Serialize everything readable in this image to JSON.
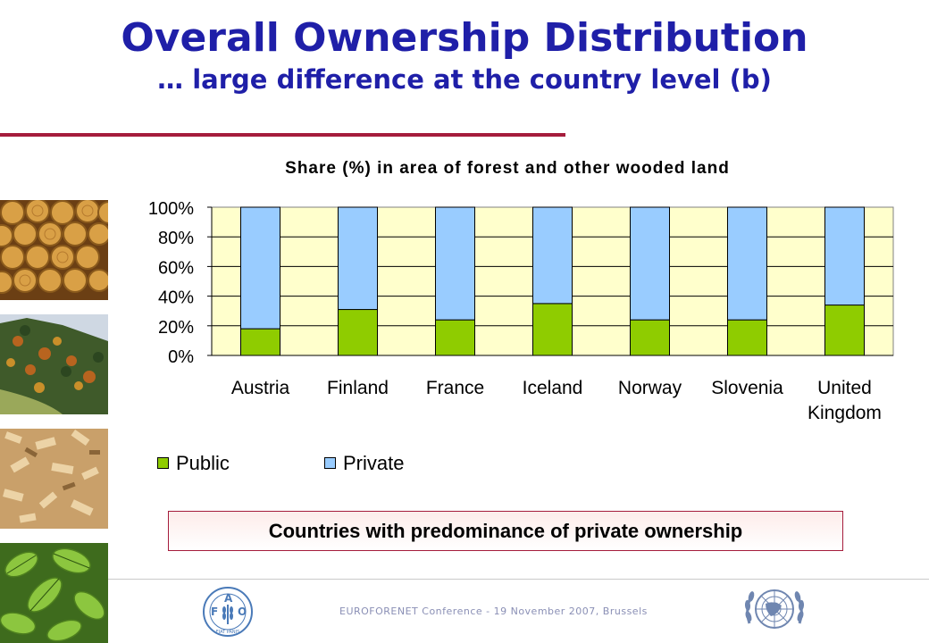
{
  "slide": {
    "title": "Overall Ownership Distribution",
    "subtitle": "… large difference at the country level (b)",
    "callout": "Countries with predominance of private ownership",
    "footer": "EUROFORENET  Conference  -  19 November 2007,  Brussels"
  },
  "logos": {
    "fao_letters": [
      "F",
      "A",
      "O"
    ],
    "fao_motto": "FIAT PANIS"
  },
  "colors": {
    "title": "#1f1fa8",
    "rule": "#a51c3c",
    "plot_background": "#ffffcc",
    "public": "#8fcc00",
    "private": "#99ccff",
    "footer_text": "#8a8fb5"
  },
  "chart_data": {
    "type": "bar",
    "stacked": true,
    "title": "Share (%) in area of forest and other wooded land",
    "categories": [
      "Austria",
      "Finland",
      "France",
      "Iceland",
      "Norway",
      "Slovenia",
      "United Kingdom"
    ],
    "series": [
      {
        "name": "Public",
        "color": "#8fcc00",
        "values": [
          18,
          31,
          24,
          35,
          24,
          24,
          34
        ]
      },
      {
        "name": "Private",
        "color": "#99ccff",
        "values": [
          82,
          69,
          76,
          65,
          76,
          76,
          66
        ]
      }
    ],
    "yticks": [
      "0%",
      "20%",
      "40%",
      "60%",
      "80%",
      "100%"
    ],
    "ylim": [
      0,
      100
    ],
    "grid": true,
    "legend": "bottom"
  }
}
